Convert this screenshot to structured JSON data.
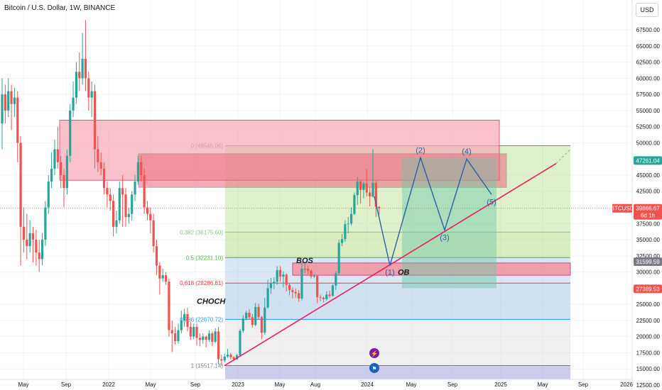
{
  "header": {
    "symbol_title": "Bitcoin / U.S. Dollar, 1W, BINANCE",
    "currency": "USD"
  },
  "colors": {
    "up": "#26a69a",
    "down": "#ef5350",
    "grid": "#f0f3fa",
    "trendline": "#e91e63",
    "wave": "#2962a8",
    "supply_zone": "#f7a8b4",
    "ob_zone": "#f48a96",
    "fib_green": "#b9dd8f",
    "fib_blue": "#a9c9e4",
    "fib_grey": "#dcdcdc",
    "fib_purple": "#aaaadd",
    "target_box": "#6cc8a8",
    "price_badge": "#ef5350",
    "level_badge_grey": "#787b86",
    "level_badge_green": "#26a69a"
  },
  "chart_data": {
    "type": "candlestick",
    "title": "Bitcoin / U.S. Dollar, 1W, BINANCE",
    "x_tick_labels": [
      "May",
      "Sep",
      "2022",
      "May",
      "Sep",
      "2023",
      "May",
      "Aug",
      "2024",
      "May",
      "Sep",
      "2025",
      "May",
      "Sep",
      "2026"
    ],
    "y_tick_labels": [
      "67500.00",
      "65000.00",
      "62500.00",
      "60000.00",
      "57500.00",
      "55000.00",
      "52500.00",
      "50000.00",
      "45000.00",
      "42500.00",
      "37500.00",
      "35000.00",
      "32500.00",
      "30000.00",
      "25000.00",
      "22500.00",
      "20000.00",
      "17500.00",
      "15000.00",
      "12500.00"
    ],
    "ylim": [
      12500,
      70000
    ],
    "candles": [
      [
        53000,
        57500,
        60000,
        49000
      ],
      [
        57500,
        55000,
        59000,
        53000
      ],
      [
        55000,
        58000,
        60000,
        54000
      ],
      [
        58000,
        56000,
        59000,
        52000
      ],
      [
        56000,
        57000,
        58500,
        54000
      ],
      [
        57000,
        50000,
        58000,
        47000
      ],
      [
        50000,
        37000,
        51000,
        31000
      ],
      [
        37000,
        35000,
        40000,
        33000
      ],
      [
        35000,
        34000,
        39000,
        32000
      ],
      [
        34000,
        36000,
        38000,
        33000
      ],
      [
        36000,
        35000,
        37000,
        31500
      ],
      [
        35000,
        33000,
        36500,
        31000
      ],
      [
        33000,
        32000,
        35000,
        30000
      ],
      [
        32000,
        35000,
        36000,
        31000
      ],
      [
        35000,
        40000,
        41000,
        34000
      ],
      [
        40000,
        44000,
        45000,
        39000
      ],
      [
        44000,
        46000,
        48500,
        43000
      ],
      [
        46000,
        49000,
        50500,
        45000
      ],
      [
        49000,
        47000,
        52500,
        46000
      ],
      [
        47000,
        45000,
        48000,
        43000
      ],
      [
        45000,
        43000,
        46000,
        40000
      ],
      [
        43000,
        48000,
        49000,
        42000
      ],
      [
        48000,
        55000,
        56000,
        47000
      ],
      [
        55000,
        57000,
        59500,
        54000
      ],
      [
        57000,
        61000,
        62500,
        56000
      ],
      [
        61000,
        60000,
        64000,
        58000
      ],
      [
        60000,
        63000,
        67000,
        59000
      ],
      [
        63000,
        60000,
        69000,
        58000
      ],
      [
        60000,
        57000,
        61000,
        55000
      ],
      [
        57000,
        58000,
        59500,
        54000
      ],
      [
        58000,
        49000,
        59000,
        46000
      ],
      [
        49000,
        47000,
        51000,
        45500
      ],
      [
        47000,
        46000,
        48500,
        45000
      ],
      [
        46000,
        43000,
        47000,
        42000
      ],
      [
        43000,
        42000,
        44000,
        40000
      ],
      [
        42000,
        41000,
        43000,
        39500
      ],
      [
        41000,
        37000,
        42000,
        35500
      ],
      [
        37000,
        38000,
        39500,
        36000
      ],
      [
        38000,
        43000,
        44000,
        37500
      ],
      [
        43000,
        42000,
        45000,
        37000
      ],
      [
        42000,
        38500,
        43000,
        37000
      ],
      [
        38500,
        39000,
        40000,
        37500
      ],
      [
        39000,
        42000,
        42500,
        38000
      ],
      [
        42000,
        44000,
        45000,
        41000
      ],
      [
        44000,
        47000,
        48000,
        43500
      ],
      [
        47000,
        45000,
        48000,
        44000
      ],
      [
        45000,
        40000,
        46000,
        39000
      ],
      [
        40000,
        39000,
        41000,
        38000
      ],
      [
        39000,
        38000,
        40000,
        36000
      ],
      [
        38000,
        34000,
        39000,
        33000
      ],
      [
        34000,
        31000,
        35000,
        29500
      ],
      [
        31000,
        29000,
        31500,
        26500
      ],
      [
        29000,
        29500,
        30500,
        28500
      ],
      [
        29500,
        28500,
        30000,
        28000
      ],
      [
        28500,
        21000,
        29000,
        20000
      ],
      [
        21000,
        20500,
        22500,
        17600
      ],
      [
        20500,
        19300,
        21500,
        18800
      ],
      [
        19300,
        21000,
        22000,
        18900
      ],
      [
        21000,
        22500,
        24000,
        20500
      ],
      [
        22500,
        23500,
        24300,
        21500
      ],
      [
        23500,
        21500,
        24500,
        20800
      ],
      [
        21500,
        20000,
        22300,
        19500
      ],
      [
        20000,
        21500,
        22000,
        19600
      ],
      [
        21500,
        19800,
        22000,
        18600
      ],
      [
        19800,
        19500,
        20500,
        18500
      ],
      [
        19500,
        20000,
        20500,
        18900
      ],
      [
        20000,
        19500,
        20200,
        18300
      ],
      [
        19500,
        20500,
        21000,
        19200
      ],
      [
        20500,
        19200,
        20800,
        18500
      ],
      [
        19200,
        20800,
        21300,
        19000
      ],
      [
        20800,
        16500,
        21500,
        15700
      ],
      [
        16500,
        16300,
        17200,
        15500
      ],
      [
        16300,
        16900,
        17400,
        16000
      ],
      [
        16900,
        17200,
        18100,
        16700
      ],
      [
        17200,
        16800,
        17500,
        16500
      ],
      [
        16800,
        16500,
        17000,
        16300
      ],
      [
        16500,
        17100,
        17300,
        16400
      ],
      [
        17100,
        20900,
        21200,
        17000
      ],
      [
        20900,
        22800,
        23300,
        20600
      ],
      [
        22800,
        23700,
        24000,
        22500
      ],
      [
        23700,
        23000,
        24200,
        22600
      ],
      [
        23000,
        21800,
        23500,
        21400
      ],
      [
        21800,
        24600,
        25200,
        21600
      ],
      [
        24600,
        23000,
        25100,
        22600
      ],
      [
        23000,
        20600,
        23200,
        19600
      ],
      [
        20600,
        24500,
        26000,
        20300
      ],
      [
        24500,
        27500,
        28800,
        24300
      ],
      [
        27500,
        28300,
        29100,
        26600
      ],
      [
        28300,
        28500,
        29200,
        27300
      ],
      [
        28500,
        30300,
        30900,
        28000
      ],
      [
        30300,
        29300,
        30900,
        28500
      ],
      [
        29300,
        29600,
        30100,
        27600
      ],
      [
        29600,
        28000,
        29800,
        27000
      ],
      [
        28000,
        27200,
        28300,
        26400
      ],
      [
        27200,
        26900,
        27600,
        25900
      ],
      [
        26900,
        26700,
        27400,
        26000
      ],
      [
        26700,
        25900,
        27200,
        25400
      ],
      [
        25900,
        30500,
        31400,
        25600
      ],
      [
        30500,
        30500,
        31300,
        29800
      ],
      [
        30500,
        30200,
        31000,
        29600
      ],
      [
        30200,
        29300,
        30400,
        29000
      ],
      [
        29300,
        29400,
        29700,
        29100
      ],
      [
        29400,
        26100,
        29500,
        25200
      ],
      [
        26100,
        26000,
        26500,
        25500
      ],
      [
        26000,
        25800,
        26200,
        25300
      ],
      [
        25800,
        26500,
        27000,
        25600
      ],
      [
        26500,
        26300,
        27100,
        26000
      ],
      [
        26300,
        27900,
        28100,
        26200
      ],
      [
        27900,
        29800,
        30100,
        27200
      ],
      [
        29800,
        34500,
        35000,
        29600
      ],
      [
        34500,
        35100,
        35900,
        34000
      ],
      [
        35100,
        37400,
        38000,
        34700
      ],
      [
        37400,
        37500,
        38500,
        36000
      ],
      [
        37500,
        39000,
        40000,
        37200
      ],
      [
        39000,
        41900,
        42300,
        38800
      ],
      [
        41900,
        44000,
        44700,
        40400
      ],
      [
        44000,
        42700,
        44200,
        40600
      ],
      [
        42700,
        43700,
        44000,
        41400
      ],
      [
        43700,
        42300,
        45900,
        41700
      ],
      [
        42300,
        41700,
        43200,
        40200
      ],
      [
        41700,
        43800,
        49000,
        41500
      ],
      [
        43800,
        40100,
        44100,
        38500
      ],
      [
        40100,
        39866.67,
        40200,
        38800
      ]
    ],
    "fibonacci": {
      "levels": [
        {
          "label": "0 (49545.06)",
          "value": 49545.06
        },
        {
          "label": "0.382 (36175.60)",
          "value": 36175.6
        },
        {
          "label": "0.5 (32231.10)",
          "value": 32231.1
        },
        {
          "label": "0.618 (28286.61)",
          "value": 28286.61
        },
        {
          "label": "0.786 (22670.72)",
          "value": 22670.72
        },
        {
          "label": "1 (15517.14)",
          "value": 15517.14
        }
      ]
    },
    "zones": [
      {
        "name": "supply-zone",
        "top": 53500,
        "bottom": 44200
      },
      {
        "name": "upper-resistance-zone",
        "top": 48300,
        "bottom": 43100
      },
      {
        "name": "order-block",
        "top": 31400,
        "bottom": 29500
      },
      {
        "name": "projection-box",
        "top": 47700,
        "bottom": 27500
      }
    ],
    "trendline": {
      "from": 15500,
      "to": 49000
    },
    "projection_waves": [
      {
        "label": "(1)",
        "value": 31000
      },
      {
        "label": "(2)",
        "value": 47700
      },
      {
        "label": "(3)",
        "value": 36500
      },
      {
        "label": "(4)",
        "value": 47500
      },
      {
        "label": "(5)",
        "value": 42000
      }
    ],
    "annotations": [
      {
        "label": "CHOCH",
        "value": 25500
      },
      {
        "label": "BOS",
        "value": 31800
      },
      {
        "label": "OB",
        "value": 30000
      }
    ],
    "price_badges": [
      {
        "label": "47261.04",
        "value": 47261.04,
        "kind": "green"
      },
      {
        "label": "39866.67",
        "value": 39866.67,
        "kind": "red",
        "symbol": "BTCUSD",
        "countdown": "6d 1h"
      },
      {
        "label": "31599.59",
        "value": 31599.59,
        "kind": "grey"
      },
      {
        "label": "27389.53",
        "value": 27389.53,
        "kind": "red"
      }
    ],
    "markers": [
      {
        "name": "lightning-event-icon",
        "glyph": "⚡"
      },
      {
        "name": "us-flag-event-icon",
        "glyph": "⚑"
      }
    ],
    "grid": true
  }
}
